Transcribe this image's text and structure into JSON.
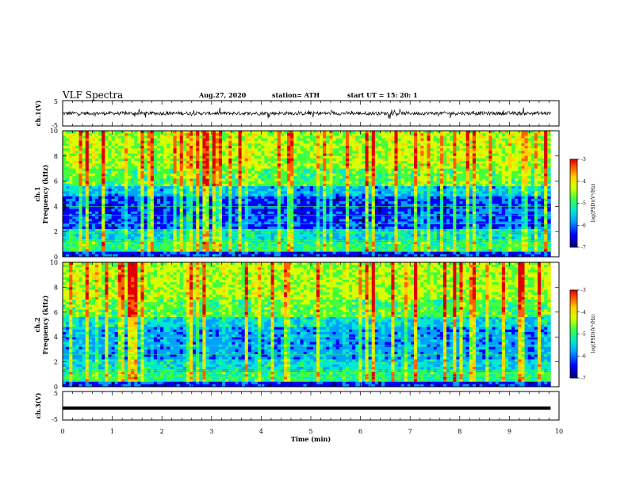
{
  "header": {
    "title": "VLF Spectra",
    "date": "Aug.27, 2020",
    "station": "station= ATH",
    "start": "start  UT =   15: 20: 1"
  },
  "colors": {
    "scale": [
      "#00007a",
      "#0000ff",
      "#00a0ff",
      "#00e8d0",
      "#40ff40",
      "#d8ff00",
      "#ffd000",
      "#ff6000",
      "#e00000"
    ]
  },
  "chart_data": [
    {
      "type": "line",
      "name": "ch.1 waveform",
      "ylabel": "ch.1(V)",
      "ylim": [
        -5,
        5
      ],
      "yticks": [
        "5",
        "-5"
      ],
      "xlim": [
        0,
        10
      ],
      "approx_level": 0,
      "approx_range": [
        -1.3,
        1.3
      ],
      "description": "noisy voltage trace around 0 V"
    },
    {
      "type": "heatmap",
      "name": "ch.1 spectrogram",
      "ylabel": "ch.1\nFrequency (kHz)",
      "ylim": [
        0,
        10
      ],
      "yticks": [
        "0",
        "2",
        "4",
        "6",
        "8",
        "10"
      ],
      "xlim": [
        0,
        10
      ],
      "x_end": 9.83,
      "colorbar": {
        "label": "log(PSD)(V²/Hz)",
        "range": [
          -7,
          -3
        ],
        "ticks": [
          "-3",
          "-4",
          "-5",
          "-6",
          "-7"
        ]
      }
    },
    {
      "type": "heatmap",
      "name": "ch.2 spectrogram",
      "ylabel": "ch.2\nFrequency (kHz)",
      "ylim": [
        0,
        10
      ],
      "yticks": [
        "0",
        "2",
        "4",
        "6",
        "8",
        "10"
      ],
      "xlim": [
        0,
        10
      ],
      "x_end": 9.83,
      "colorbar": {
        "label": "log(PSD)(V²/Hz)",
        "range": [
          -7,
          -3
        ],
        "ticks": [
          "-3",
          "-4",
          "-5",
          "-6",
          "-7"
        ]
      }
    },
    {
      "type": "line",
      "name": "ch.3 waveform",
      "ylabel": "ch.3(V)",
      "ylim": [
        -5,
        5
      ],
      "yticks": [
        "5",
        "-5"
      ],
      "xlim": [
        0,
        10
      ],
      "xlabel": "Time (min)",
      "xticks": [
        "0",
        "1",
        "2",
        "3",
        "4",
        "5",
        "6",
        "7",
        "8",
        "9",
        "10"
      ],
      "approx_level": -0.8
    }
  ]
}
